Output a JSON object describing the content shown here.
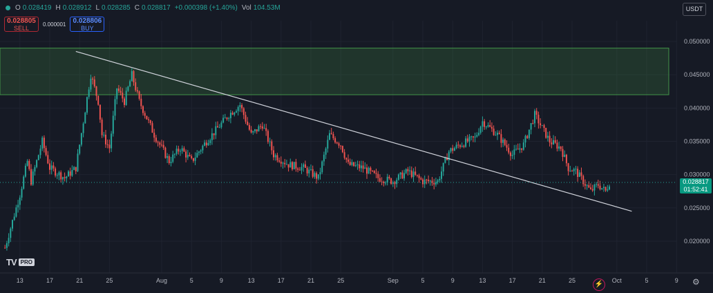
{
  "legend": {
    "o_label": "O",
    "o_value": "0.028419",
    "h_label": "H",
    "h_value": "0.028912",
    "l_label": "L",
    "l_value": "0.028285",
    "c_label": "C",
    "c_value": "0.028817",
    "change": "+0.000398 (+1.40%)",
    "vol_label": "Vol",
    "vol_value": "104.53M"
  },
  "trade": {
    "sell_price": "0.028805",
    "sell_label": "SELL",
    "spread": "0.000001",
    "buy_price": "0.028806",
    "buy_label": "BUY"
  },
  "currency": "USDT",
  "price_label": {
    "price": "0.028817",
    "countdown": "01:52:41"
  },
  "logo": {
    "mark": "TV",
    "badge": "PRO"
  },
  "colors": {
    "up": "#26a69a",
    "down": "#ef5350",
    "zone": "#4caf50",
    "trendline": "#d1d4dc",
    "background": "#161a25"
  },
  "icons": {
    "status": "green-dot-icon",
    "bolt": "bolt-icon",
    "settings": "gear-icon"
  },
  "chart_data": {
    "type": "candlestick",
    "ylim": [
      0.018,
      0.052
    ],
    "y_ticks": [
      "0.050000",
      "0.045000",
      "0.040000",
      "0.035000",
      "0.030000",
      "0.025000",
      "0.020000"
    ],
    "y_tick_values": [
      0.05,
      0.045,
      0.04,
      0.035,
      0.03,
      0.025,
      0.02
    ],
    "x_ticks": [
      "13",
      "17",
      "21",
      "25",
      "Aug",
      "5",
      "9",
      "13",
      "17",
      "21",
      "25",
      "Sep",
      "5",
      "9",
      "13",
      "17",
      "21",
      "25",
      "Oct",
      "5",
      "9"
    ],
    "x_tick_days": [
      -19,
      -15,
      -11,
      -7,
      0,
      4,
      8,
      12,
      16,
      20,
      24,
      31,
      35,
      39,
      43,
      47,
      51,
      55,
      61,
      65,
      69
    ],
    "x_start_day": -21,
    "x_end_day": 72,
    "last_price": 0.028817,
    "resistance_zone": [
      0.042,
      0.049
    ],
    "trendline": [
      {
        "day": -11.5,
        "value": 0.0485
      },
      {
        "day": 63,
        "value": 0.0245
      }
    ],
    "anchors": [
      [
        -21,
        0.019
      ],
      [
        -20,
        0.023
      ],
      [
        -19,
        0.027
      ],
      [
        -18,
        0.032
      ],
      [
        -17.5,
        0.029
      ],
      [
        -16,
        0.035
      ],
      [
        -15,
        0.031
      ],
      [
        -13,
        0.0295
      ],
      [
        -11.5,
        0.031
      ],
      [
        -10.5,
        0.038
      ],
      [
        -9.5,
        0.045
      ],
      [
        -8.5,
        0.041
      ],
      [
        -8,
        0.036
      ],
      [
        -7,
        0.034
      ],
      [
        -6,
        0.043
      ],
      [
        -5,
        0.041
      ],
      [
        -4,
        0.045
      ],
      [
        -3,
        0.041
      ],
      [
        -1,
        0.036
      ],
      [
        1,
        0.032
      ],
      [
        2.5,
        0.034
      ],
      [
        4,
        0.032
      ],
      [
        6,
        0.035
      ],
      [
        7.5,
        0.037
      ],
      [
        9,
        0.039
      ],
      [
        10.5,
        0.0405
      ],
      [
        12,
        0.036
      ],
      [
        13.5,
        0.0375
      ],
      [
        15,
        0.033
      ],
      [
        17,
        0.0315
      ],
      [
        19,
        0.031
      ],
      [
        21,
        0.0295
      ],
      [
        22.5,
        0.036
      ],
      [
        24,
        0.0345
      ],
      [
        25,
        0.0315
      ],
      [
        27,
        0.031
      ],
      [
        29,
        0.0295
      ],
      [
        31,
        0.029
      ],
      [
        33,
        0.0305
      ],
      [
        35,
        0.029
      ],
      [
        37,
        0.029
      ],
      [
        38.5,
        0.0335
      ],
      [
        40,
        0.0345
      ],
      [
        42,
        0.0355
      ],
      [
        43,
        0.038
      ],
      [
        45,
        0.036
      ],
      [
        47,
        0.033
      ],
      [
        48.5,
        0.0345
      ],
      [
        50,
        0.039
      ],
      [
        52,
        0.035
      ],
      [
        53.5,
        0.034
      ],
      [
        54.5,
        0.031
      ],
      [
        55.5,
        0.0305
      ],
      [
        56.5,
        0.029
      ],
      [
        57.5,
        0.0275
      ],
      [
        58.5,
        0.0285
      ],
      [
        59.5,
        0.0275
      ],
      [
        60,
        0.0288
      ]
    ]
  }
}
